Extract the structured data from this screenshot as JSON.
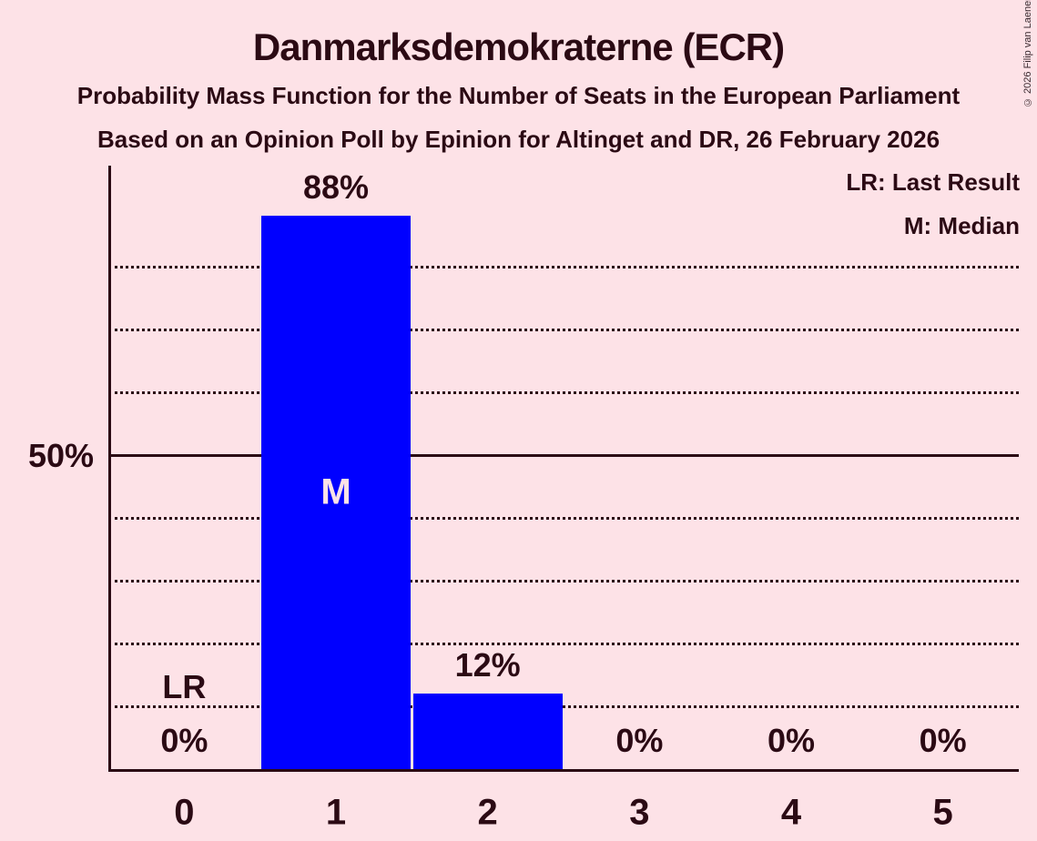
{
  "title": "Danmarksdemokraterne (ECR)",
  "subtitle1": "Probability Mass Function for the Number of Seats in the European Parliament",
  "subtitle2": "Based on an Opinion Poll by Epinion for Altinget and DR, 26 February 2026",
  "copyright": "© 2026 Filip van Laenen",
  "legend": {
    "lr": "LR: Last Result",
    "m": "M: Median",
    "position": "top-right"
  },
  "colors": {
    "background": "#FDE2E7",
    "bar": "#0000FF",
    "text": "#2B0A14",
    "bar_inner_label": "#FDE2E7"
  },
  "chart_data": {
    "type": "bar",
    "title": "Danmarksdemokraterne (ECR)",
    "categories": [
      "0",
      "1",
      "2",
      "3",
      "4",
      "5"
    ],
    "values": [
      0,
      88,
      12,
      0,
      0,
      0
    ],
    "value_labels": [
      "0%",
      "88%",
      "12%",
      "0%",
      "0%",
      "0%"
    ],
    "xlabel": "",
    "ylabel": "",
    "ylim": [
      0,
      96
    ],
    "y_tick": {
      "value": 50,
      "label": "50%"
    },
    "gridlines_dotted": [
      10,
      20,
      30,
      40,
      60,
      70,
      80
    ],
    "gridline_solid": 50,
    "grid": "dotted horizontal lines every 10%, solid line at 50%",
    "annotations": {
      "median_category": 1,
      "median_label": "M",
      "last_result_category": 0,
      "last_result_label": "LR"
    }
  }
}
